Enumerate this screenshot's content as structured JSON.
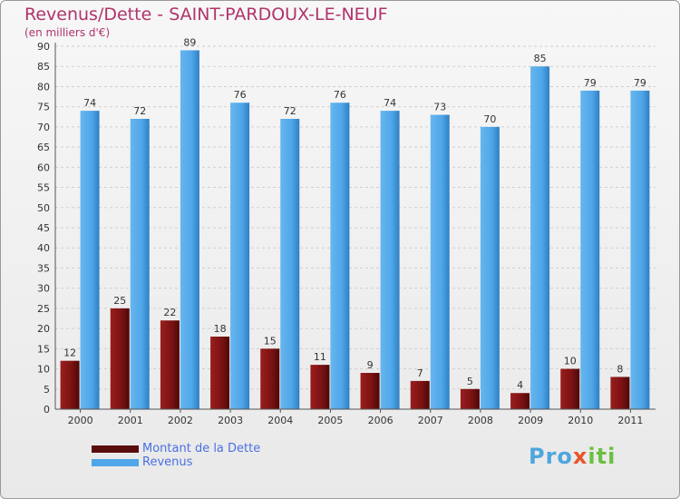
{
  "title": "Revenus/Dette - SAINT-PARDOUX-LE-NEUF",
  "subtitle": "(en milliers d'€)",
  "brand": {
    "parts": [
      "Pro",
      "x",
      "iti"
    ],
    "colors": [
      "#4fa6de",
      "#e8552a",
      "#6cbf3f"
    ]
  },
  "chart_data": {
    "type": "bar",
    "categories": [
      "2000",
      "2001",
      "2002",
      "2003",
      "2004",
      "2005",
      "2006",
      "2007",
      "2008",
      "2009",
      "2010",
      "2011"
    ],
    "series": [
      {
        "name": "Montant de la Dette",
        "values": [
          12,
          25,
          22,
          18,
          15,
          11,
          9,
          7,
          5,
          4,
          10,
          8
        ],
        "color": "#7a1212"
      },
      {
        "name": "Revenus",
        "values": [
          74,
          72,
          89,
          76,
          72,
          76,
          74,
          73,
          70,
          85,
          79,
          79
        ],
        "color": "#4fa6e8"
      }
    ],
    "ylim": [
      0,
      90
    ],
    "yticks": [
      0,
      5,
      10,
      15,
      20,
      25,
      30,
      35,
      40,
      45,
      50,
      55,
      60,
      65,
      70,
      75,
      80,
      85,
      90
    ],
    "grid": true,
    "legend": "bottom-left"
  }
}
